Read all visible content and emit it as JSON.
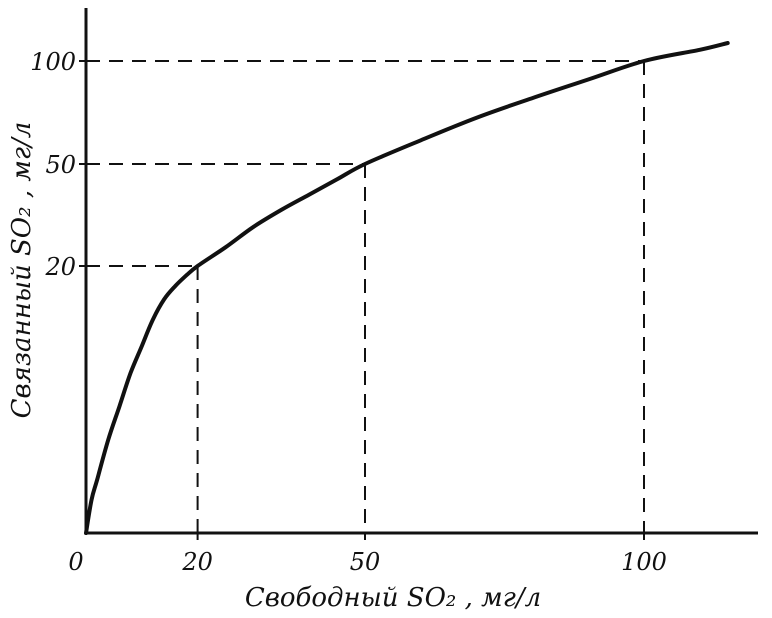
{
  "chart_data": {
    "type": "line",
    "title": "",
    "xlabel": "Свободный SO₂ , мг/л",
    "ylabel": "Связанный SO₂ , мг/л",
    "x_ticks": [
      0,
      20,
      50,
      100
    ],
    "x_tick_labels": [
      "0",
      "20",
      "50",
      "100"
    ],
    "y_ticks": [
      20,
      50,
      100
    ],
    "y_tick_labels": [
      "20",
      "50",
      "100"
    ],
    "y_scale": "nonlinear",
    "grid": false,
    "legend": "none",
    "series": [
      {
        "x": [
          0,
          1,
          2,
          4,
          6,
          8,
          10,
          12,
          14,
          16,
          18,
          20,
          25,
          30,
          35,
          40,
          45,
          50,
          60,
          70,
          80,
          90,
          100,
          110,
          115
        ],
        "y": [
          0,
          2.5,
          4,
          7,
          9.5,
          12,
          14,
          16,
          17.5,
          18.5,
          19.3,
          20,
          25.5,
          31.5,
          36.5,
          41,
          45.5,
          50,
          61.5,
          72.5,
          82,
          91,
          100,
          105,
          108
        ]
      }
    ],
    "reference_points": [
      {
        "x": 20,
        "y": 20
      },
      {
        "x": 50,
        "y": 50
      },
      {
        "x": 100,
        "y": 100
      }
    ]
  }
}
